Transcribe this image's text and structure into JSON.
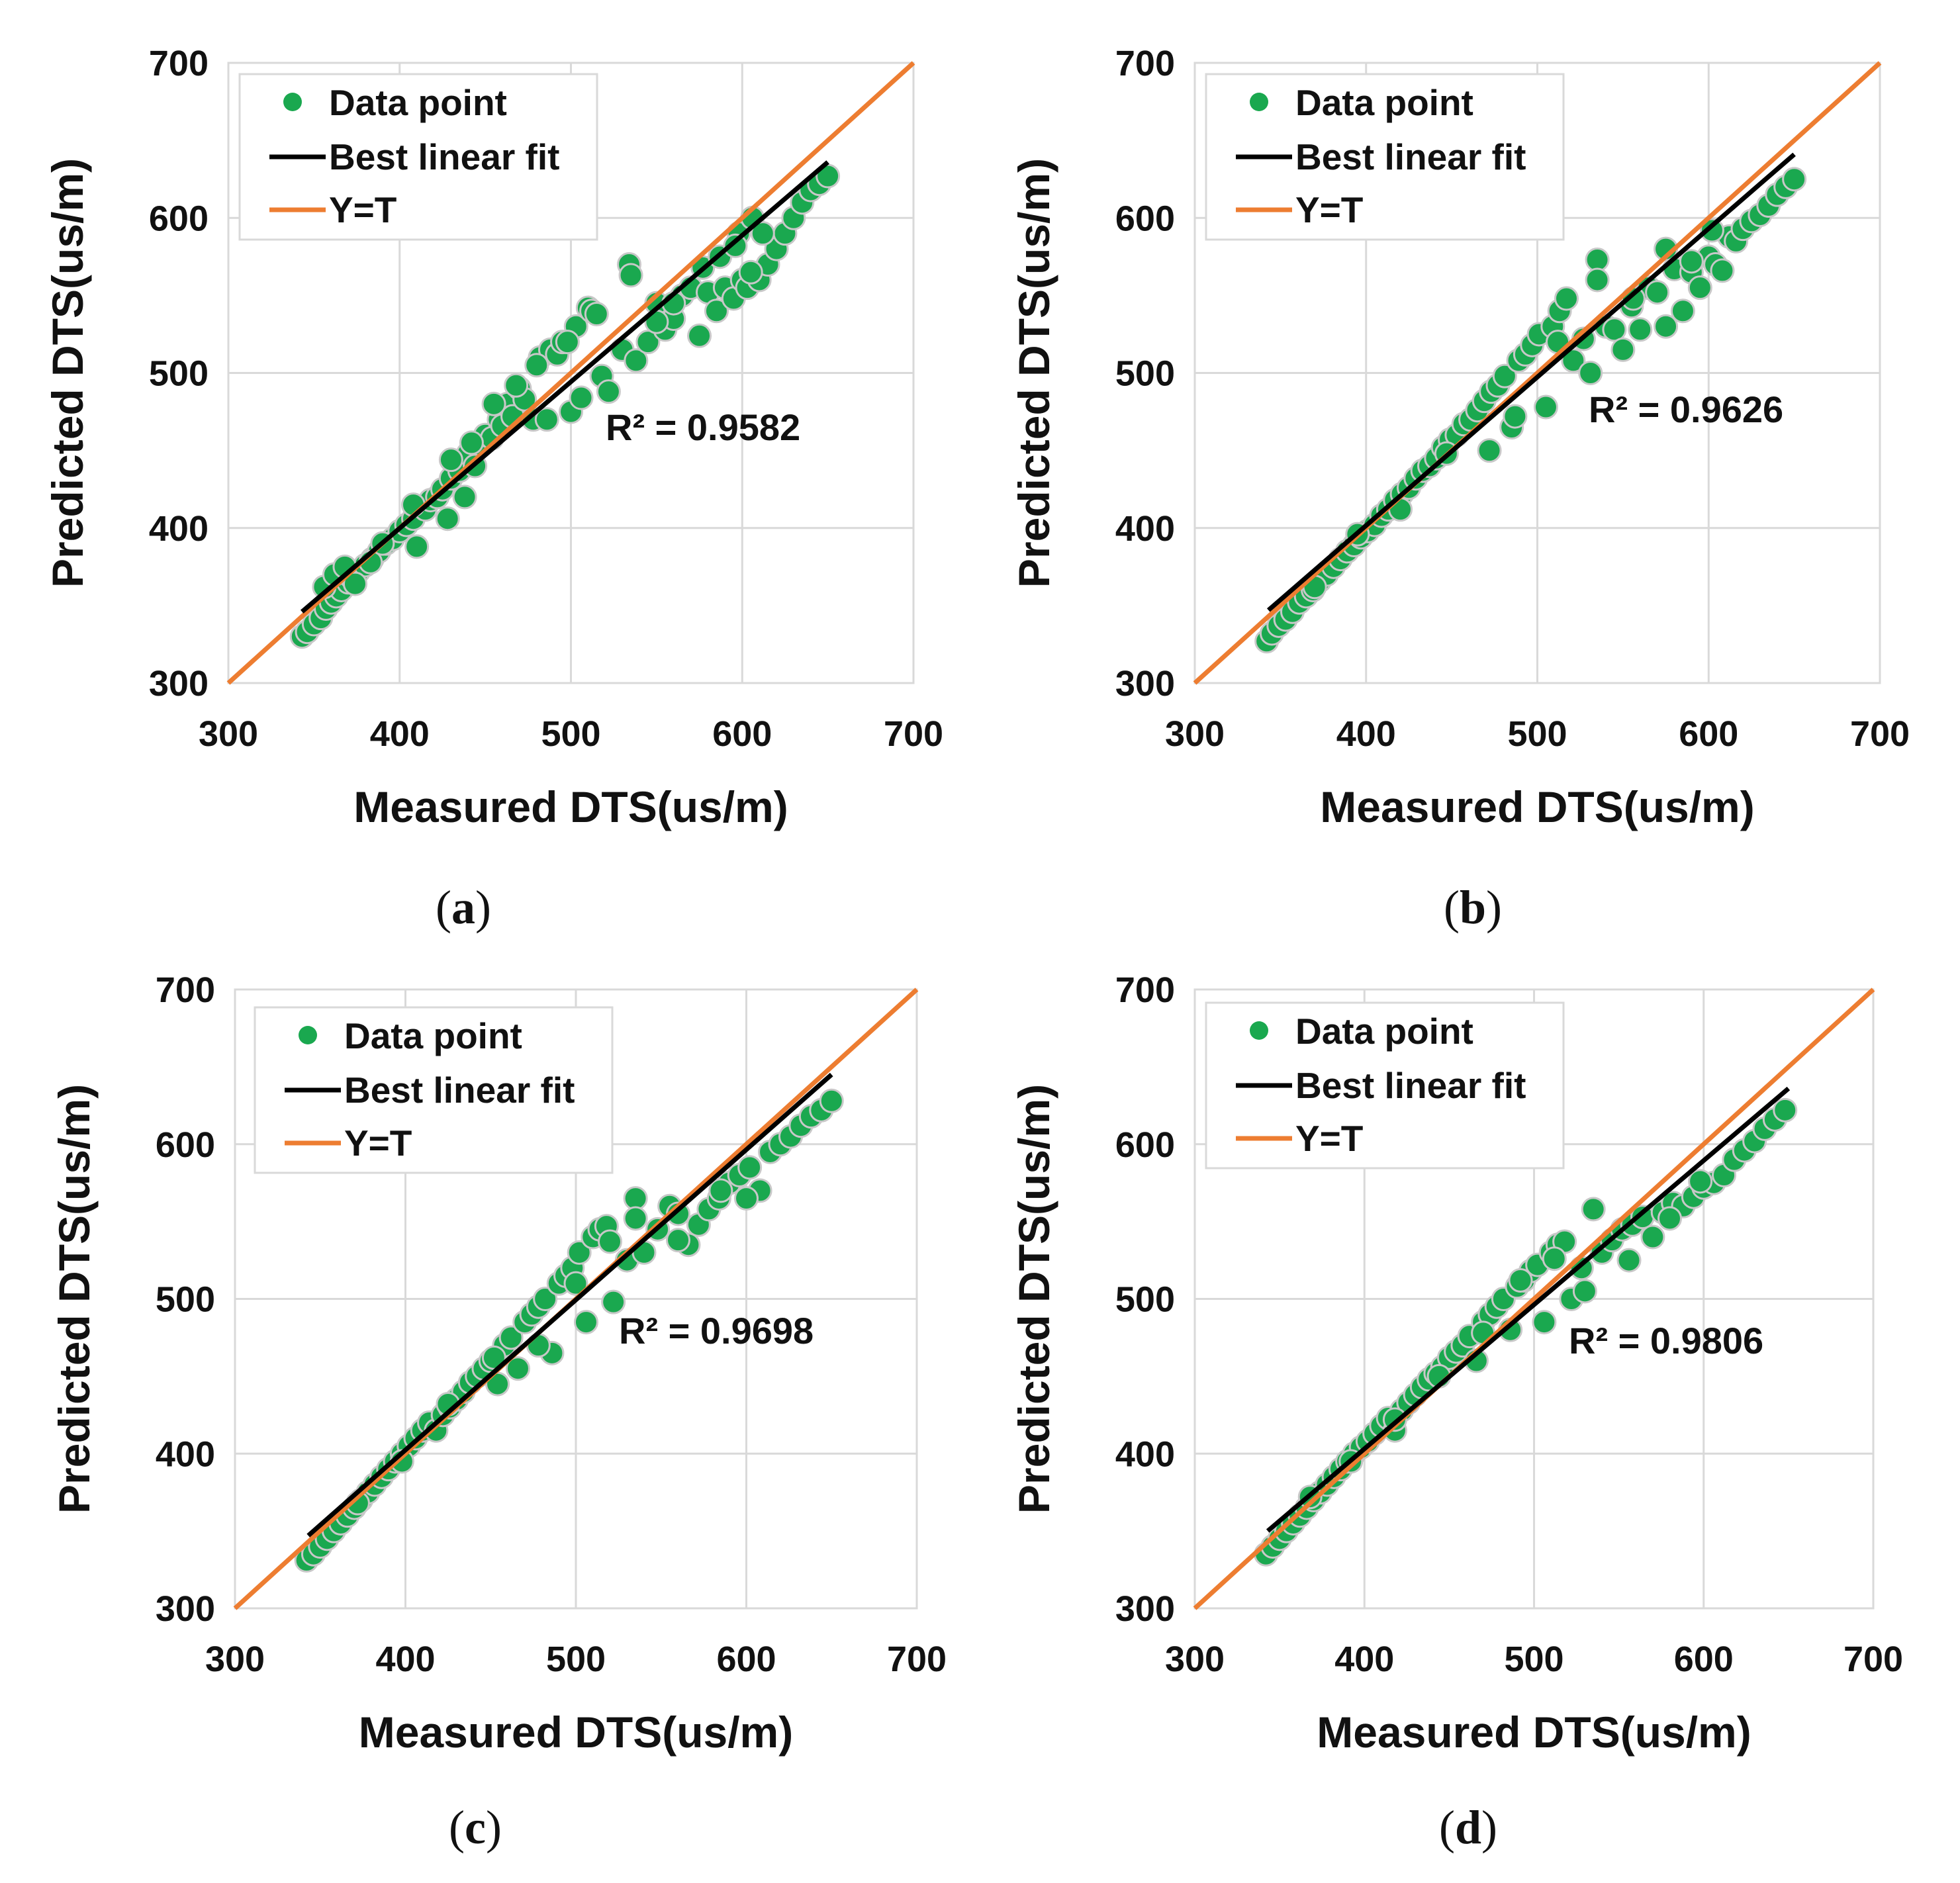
{
  "chart_data": [
    {
      "type": "scatter",
      "panel_label": "a",
      "xlabel": "Measured DTS(us/m)",
      "ylabel": "Predicted DTS(us/m)",
      "xlim": [
        300,
        700
      ],
      "ylim": [
        300,
        700
      ],
      "xticks": [
        "300",
        "400",
        "500",
        "600",
        "700"
      ],
      "yticks": [
        "300",
        "400",
        "500",
        "600",
        "700"
      ],
      "legend": [
        "Data point",
        "Best linear fit",
        "Y=T"
      ],
      "annotation": "R² = 0.9582",
      "fit_line": {
        "x": [
          343,
          650
        ],
        "y": [
          346,
          636
        ]
      },
      "identity_line": {
        "x": [
          300,
          700
        ],
        "y": [
          300,
          700
        ]
      },
      "points": {
        "x": [
          343,
          346,
          350,
          354,
          357,
          360,
          363,
          366,
          370,
          372,
          376,
          380,
          384,
          388,
          392,
          396,
          400,
          404,
          408,
          410,
          415,
          418,
          422,
          425,
          428,
          430,
          435,
          438,
          440,
          444,
          447,
          450,
          454,
          458,
          460,
          463,
          466,
          470,
          473,
          478,
          482,
          486,
          488,
          492,
          495,
          500,
          503,
          506,
          510,
          512,
          518,
          522,
          530,
          534,
          538,
          545,
          550,
          555,
          560,
          565,
          570,
          575,
          580,
          585,
          590,
          595,
          598,
          600,
          603,
          606,
          610,
          615,
          620,
          625,
          630,
          635,
          640,
          645,
          650,
          356,
          362,
          368,
          374,
          383,
          390,
          408,
          430,
          442,
          455,
          468,
          480,
          498,
          515,
          535,
          550,
          560,
          577,
          587,
          596,
          605,
          612
        ],
        "y": [
          330,
          333,
          338,
          342,
          348,
          352,
          356,
          360,
          365,
          368,
          372,
          376,
          380,
          385,
          390,
          393,
          398,
          402,
          406,
          388,
          412,
          418,
          420,
          425,
          406,
          432,
          437,
          420,
          448,
          440,
          454,
          460,
          458,
          470,
          466,
          480,
          472,
          490,
          483,
          470,
          510,
          470,
          515,
          512,
          520,
          475,
          530,
          484,
          542,
          540,
          498,
          488,
          515,
          570,
          508,
          520,
          545,
          528,
          535,
          550,
          555,
          524,
          552,
          540,
          555,
          548,
          590,
          560,
          555,
          600,
          560,
          570,
          580,
          590,
          600,
          610,
          618,
          622,
          627,
          362,
          370,
          375,
          364,
          378,
          390,
          415,
          444,
          455,
          480,
          492,
          505,
          520,
          538,
          563,
          533,
          545,
          568,
          575,
          582,
          565,
          590
        ]
      }
    },
    {
      "type": "scatter",
      "panel_label": "b",
      "xlabel": "Measured DTS(us/m)",
      "ylabel": "Predicted DTS(us/m)",
      "xlim": [
        300,
        700
      ],
      "ylim": [
        300,
        700
      ],
      "xticks": [
        "300",
        "400",
        "500",
        "600",
        "700"
      ],
      "yticks": [
        "300",
        "400",
        "500",
        "600",
        "700"
      ],
      "legend": [
        "Data point",
        "Best linear fit",
        "Y=T"
      ],
      "annotation": "R² = 0.9626",
      "fit_line": {
        "x": [
          343,
          650
        ],
        "y": [
          347,
          641
        ]
      },
      "identity_line": {
        "x": [
          300,
          700
        ],
        "y": [
          300,
          700
        ]
      },
      "points": {
        "x": [
          342,
          345,
          349,
          353,
          357,
          361,
          365,
          369,
          373,
          377,
          381,
          385,
          389,
          393,
          397,
          401,
          405,
          409,
          413,
          417,
          421,
          425,
          429,
          433,
          437,
          441,
          445,
          449,
          453,
          457,
          461,
          465,
          469,
          473,
          477,
          481,
          485,
          489,
          493,
          497,
          501,
          505,
          509,
          513,
          517,
          521,
          527,
          531,
          535,
          540,
          545,
          550,
          555,
          560,
          565,
          570,
          575,
          580,
          585,
          590,
          595,
          600,
          604,
          608,
          612,
          616,
          620,
          625,
          630,
          635,
          640,
          645,
          650,
          370,
          395,
          420,
          447,
          472,
          487,
          512,
          535,
          556,
          575,
          590,
          602
        ],
        "y": [
          327,
          332,
          337,
          341,
          346,
          352,
          356,
          360,
          366,
          370,
          375,
          380,
          385,
          389,
          394,
          398,
          402,
          408,
          412,
          418,
          422,
          426,
          432,
          437,
          440,
          445,
          452,
          457,
          460,
          467,
          470,
          476,
          482,
          488,
          492,
          498,
          465,
          508,
          512,
          518,
          525,
          478,
          530,
          540,
          548,
          508,
          522,
          500,
          573,
          530,
          528,
          515,
          543,
          528,
          555,
          552,
          530,
          567,
          540,
          565,
          555,
          575,
          570,
          566,
          588,
          585,
          593,
          598,
          602,
          608,
          615,
          620,
          625,
          362,
          396,
          412,
          448,
          450,
          472,
          520,
          560,
          548,
          580,
          572,
          592
        ]
      }
    },
    {
      "type": "scatter",
      "panel_label": "c",
      "xlabel": "Measured DTS(us/m)",
      "ylabel": "Predicted DTS(us/m)",
      "xlim": [
        300,
        700
      ],
      "ylim": [
        300,
        700
      ],
      "xticks": [
        "300",
        "400",
        "500",
        "600",
        "700"
      ],
      "yticks": [
        "300",
        "400",
        "500",
        "600",
        "700"
      ],
      "legend": [
        "Data point",
        "Best linear fit",
        "Y=T"
      ],
      "annotation": "R² = 0.9698",
      "fit_line": {
        "x": [
          343,
          650
        ],
        "y": [
          347,
          645
        ]
      },
      "identity_line": {
        "x": [
          300,
          700
        ],
        "y": [
          300,
          700
        ]
      },
      "points": {
        "x": [
          342,
          346,
          350,
          354,
          358,
          362,
          366,
          370,
          374,
          378,
          382,
          386,
          390,
          394,
          398,
          402,
          406,
          410,
          414,
          418,
          422,
          426,
          430,
          434,
          438,
          442,
          446,
          450,
          454,
          458,
          462,
          466,
          470,
          474,
          478,
          482,
          486,
          490,
          494,
          498,
          502,
          506,
          510,
          514,
          518,
          522,
          530,
          535,
          540,
          548,
          555,
          560,
          566,
          572,
          578,
          584,
          590,
          596,
          602,
          608,
          614,
          620,
          626,
          632,
          638,
          644,
          650,
          372,
          398,
          425,
          452,
          478,
          500,
          520,
          535,
          560,
          585,
          600
        ],
        "y": [
          331,
          335,
          340,
          345,
          350,
          355,
          360,
          365,
          370,
          375,
          380,
          385,
          390,
          395,
          400,
          405,
          410,
          415,
          420,
          415,
          425,
          430,
          435,
          440,
          446,
          450,
          455,
          460,
          445,
          470,
          475,
          455,
          485,
          490,
          495,
          500,
          465,
          510,
          515,
          520,
          530,
          485,
          540,
          545,
          547,
          498,
          525,
          565,
          530,
          545,
          560,
          555,
          535,
          548,
          558,
          565,
          575,
          580,
          585,
          570,
          595,
          600,
          605,
          612,
          618,
          622,
          628,
          368,
          395,
          432,
          462,
          470,
          510,
          537,
          552,
          538,
          570,
          565
        ]
      }
    },
    {
      "type": "scatter",
      "panel_label": "d",
      "xlabel": "Measured DTS(us/m)",
      "ylabel": "Predicted DTS(us/m)",
      "xlim": [
        300,
        700
      ],
      "ylim": [
        300,
        700
      ],
      "xticks": [
        "300",
        "400",
        "500",
        "600",
        "700"
      ],
      "yticks": [
        "300",
        "400",
        "500",
        "600",
        "700"
      ],
      "legend": [
        "Data point",
        "Best linear fit",
        "Y=T"
      ],
      "annotation": "R² = 0.9806",
      "fit_line": {
        "x": [
          343,
          650
        ],
        "y": [
          350,
          636
        ]
      },
      "identity_line": {
        "x": [
          300,
          700
        ],
        "y": [
          300,
          700
        ]
      },
      "points": {
        "x": [
          342,
          346,
          350,
          354,
          358,
          362,
          366,
          370,
          374,
          378,
          382,
          386,
          390,
          394,
          398,
          402,
          406,
          410,
          414,
          418,
          422,
          426,
          430,
          434,
          438,
          442,
          446,
          450,
          454,
          458,
          462,
          466,
          470,
          474,
          478,
          482,
          486,
          490,
          494,
          498,
          502,
          506,
          510,
          514,
          518,
          522,
          530,
          535,
          540,
          546,
          552,
          558,
          564,
          570,
          576,
          582,
          588,
          594,
          600,
          606,
          612,
          618,
          624,
          630,
          636,
          642,
          648,
          368,
          392,
          418,
          444,
          470,
          492,
          512,
          528,
          556,
          580,
          598
        ],
        "y": [
          335,
          340,
          345,
          350,
          355,
          360,
          365,
          370,
          375,
          380,
          385,
          390,
          395,
          400,
          404,
          408,
          413,
          418,
          423,
          415,
          428,
          433,
          438,
          443,
          448,
          452,
          456,
          462,
          466,
          470,
          476,
          460,
          485,
          490,
          495,
          500,
          480,
          508,
          512,
          518,
          522,
          485,
          530,
          535,
          537,
          500,
          505,
          558,
          530,
          538,
          545,
          548,
          553,
          540,
          556,
          562,
          560,
          566,
          572,
          575,
          580,
          590,
          596,
          602,
          610,
          616,
          622,
          372,
          395,
          422,
          450,
          478,
          512,
          526,
          520,
          525,
          552,
          576
        ]
      }
    }
  ],
  "captions": [
    "(a)",
    "(b)",
    "(c)",
    "(d)"
  ],
  "colors": {
    "points": "#1aa84f",
    "point_stroke": "#c8c8c8",
    "fit": "#000000",
    "identity": "#ed7d31",
    "grid": "#d9d9d9"
  }
}
